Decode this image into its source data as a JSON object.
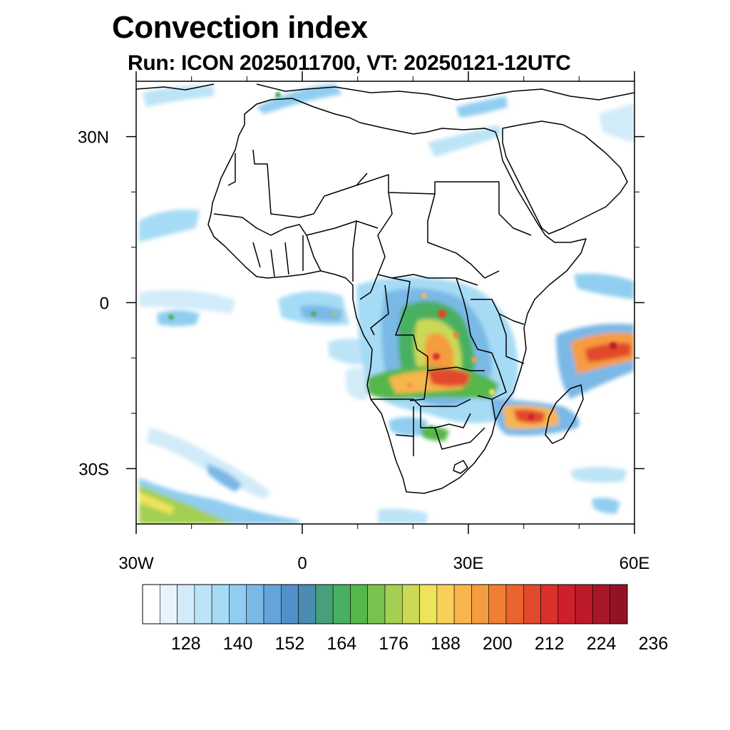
{
  "title": "Convection index",
  "subtitle": "Run: ICON 2025011700,  VT: 20250121-12UTC",
  "map": {
    "lon_range": [
      -30,
      60
    ],
    "lat_range": [
      -40,
      40
    ],
    "x_ticks": [
      {
        "lon": -30,
        "label": "30W"
      },
      {
        "lon": 0,
        "label": "0"
      },
      {
        "lon": 30,
        "label": "30E"
      },
      {
        "lon": 60,
        "label": "60E"
      }
    ],
    "y_ticks": [
      {
        "lat": 30,
        "label": "30N"
      },
      {
        "lat": 0,
        "label": "0"
      },
      {
        "lat": -30,
        "label": "30S"
      }
    ],
    "minor_lon": [
      -20,
      -10,
      10,
      20,
      40,
      50
    ],
    "minor_lat": [
      20,
      10,
      -10,
      -20
    ]
  },
  "colorbar": {
    "colors": [
      "#ffffff",
      "#e8f4fc",
      "#d2ebf9",
      "#bde3f7",
      "#a6dbf5",
      "#90cdf0",
      "#7ab8e6",
      "#64a4da",
      "#5290cc",
      "#4a8db0",
      "#47a07c",
      "#49b061",
      "#55b749",
      "#7ac24f",
      "#a4cf53",
      "#cbd956",
      "#eee35a",
      "#f8cf57",
      "#f8b54d",
      "#f59b40",
      "#f07f35",
      "#ea642e",
      "#e24a2c",
      "#db302c",
      "#cd1f2c",
      "#bc1a2b",
      "#a81729",
      "#921424"
    ],
    "labels": [
      {
        "value": 128,
        "text": "128"
      },
      {
        "value": 140,
        "text": "140"
      },
      {
        "value": 152,
        "text": "152"
      },
      {
        "value": 164,
        "text": "164"
      },
      {
        "value": 176,
        "text": "176"
      },
      {
        "value": 188,
        "text": "188"
      },
      {
        "value": 200,
        "text": "200"
      },
      {
        "value": 212,
        "text": "212"
      },
      {
        "value": 224,
        "text": "224"
      },
      {
        "value": 236,
        "text": "236"
      }
    ],
    "first_boundary": 122,
    "step": 4
  }
}
